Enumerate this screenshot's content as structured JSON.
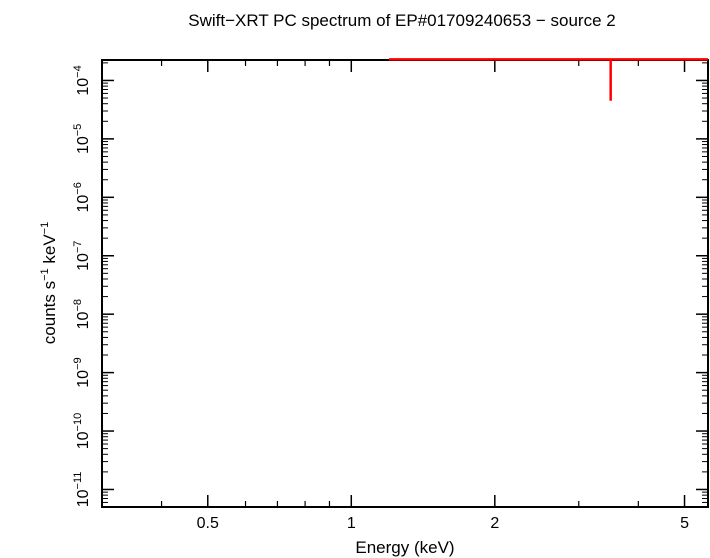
{
  "chart_data": {
    "type": "scatter",
    "title": "Swift−XRT PC spectrum of EP#01709240653 − source 2",
    "xlabel": "Energy (keV)",
    "ylabel": {
      "parts": [
        "counts s",
        "−1",
        " keV",
        "−1"
      ]
    },
    "x_scale": "log",
    "y_scale": "log",
    "xlim": [
      0.3,
      5.6
    ],
    "ylim_log10": [
      -11.3,
      -3.65
    ],
    "x_ticks": [
      {
        "value": 0.5,
        "label": "0.5"
      },
      {
        "value": 1,
        "label": "1"
      },
      {
        "value": 2,
        "label": "2"
      },
      {
        "value": 5,
        "label": "5"
      }
    ],
    "x_minor_ticks": [
      0.3,
      0.4,
      0.6,
      0.7,
      0.8,
      0.9,
      3,
      4
    ],
    "y_ticks": [
      {
        "exp": -4,
        "base": "10",
        "sup": "−4"
      },
      {
        "exp": -5,
        "base": "10",
        "sup": "−5"
      },
      {
        "exp": -6,
        "base": "10",
        "sup": "−6"
      },
      {
        "exp": -7,
        "base": "10",
        "sup": "−7"
      },
      {
        "exp": -8,
        "base": "10",
        "sup": "−8"
      },
      {
        "exp": -9,
        "base": "10",
        "sup": "−9"
      },
      {
        "exp": -10,
        "base": "10",
        "sup": "−10"
      },
      {
        "exp": -11,
        "base": "10",
        "sup": "−11"
      }
    ],
    "grid": false,
    "series": [
      {
        "color": "#ff0000",
        "points": [
          {
            "x": 3.5,
            "x_low": 1.2,
            "x_high": 5.6,
            "y": 0.00023,
            "y_low": 4.5e-05,
            "y_high": 0.00045
          }
        ]
      }
    ]
  }
}
